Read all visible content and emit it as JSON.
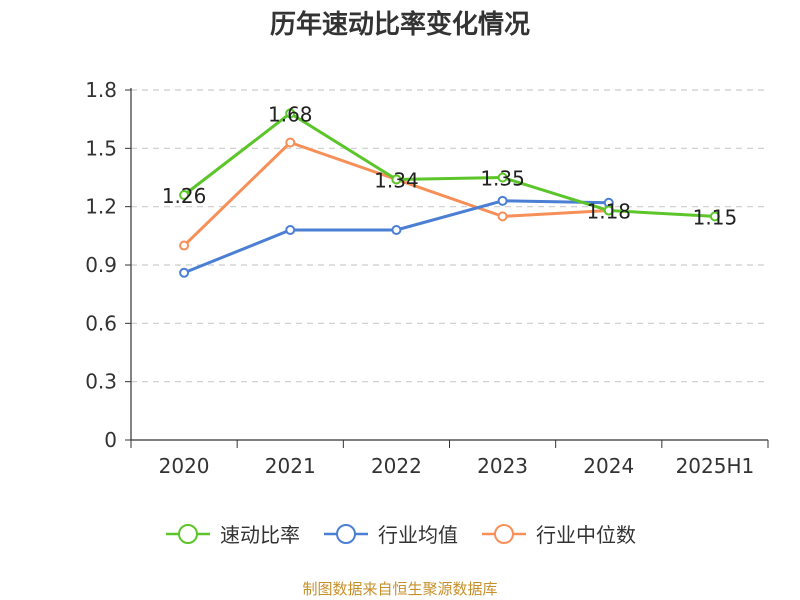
{
  "title": "历年速动比率变化情况",
  "source": "制图数据来自恒生聚源数据库",
  "chart_data": {
    "type": "line",
    "title": "历年速动比率变化情况",
    "categories": [
      "2020",
      "2021",
      "2022",
      "2023",
      "2024",
      "2025H1"
    ],
    "ylim": [
      0,
      1.8
    ],
    "yticks": [
      "0",
      "0.3",
      "0.6",
      "0.9",
      "1.2",
      "1.5",
      "1.8"
    ],
    "grid": true,
    "legend_position": "bottom",
    "series": [
      {
        "name": "速动比率",
        "color": "#5cc52a",
        "values": [
          1.26,
          1.68,
          1.34,
          1.35,
          1.18,
          1.15
        ],
        "labels": [
          "1.26",
          "1.68",
          "1.34",
          "1.35",
          "1.18",
          "1.15"
        ]
      },
      {
        "name": "行业均值",
        "color": "#4a7fd4",
        "values": [
          0.86,
          1.08,
          1.08,
          1.23,
          1.22,
          null
        ]
      },
      {
        "name": "行业中位数",
        "color": "#f79058",
        "values": [
          1.0,
          1.53,
          1.34,
          1.15,
          1.18,
          null
        ]
      }
    ]
  }
}
